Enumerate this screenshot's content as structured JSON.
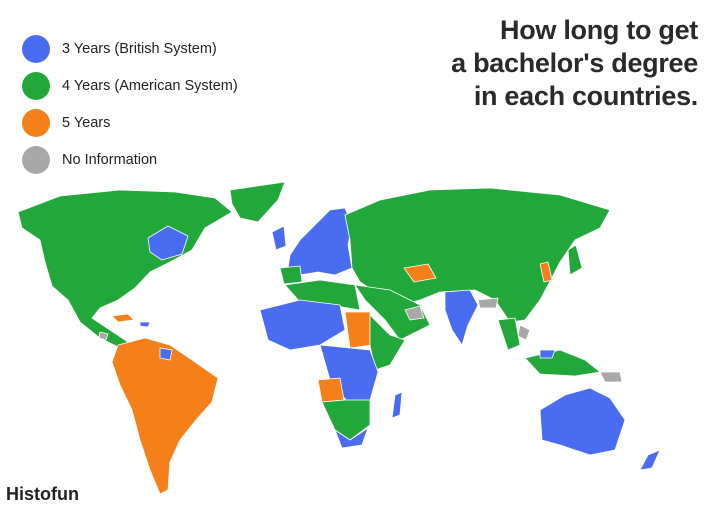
{
  "title_lines": [
    "How long to get",
    "a bachelor's degree",
    "in each countries."
  ],
  "legend": [
    {
      "label": "3 Years (British System)",
      "color": "#4a6cf0"
    },
    {
      "label": "4 Years (American System)",
      "color": "#22a83a"
    },
    {
      "label": "5 Years",
      "color": "#f5801a"
    },
    {
      "label": "No Information",
      "color": "#a8a8a8"
    }
  ],
  "brand": "Histofun"
}
